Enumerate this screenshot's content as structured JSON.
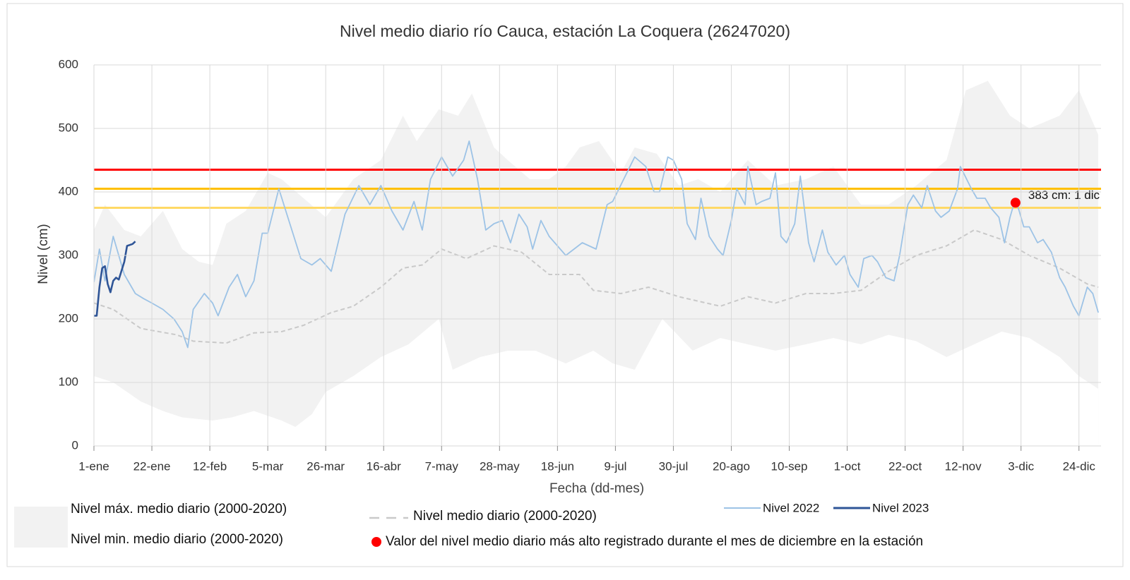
{
  "chart_data": {
    "type": "line",
    "title": "Nivel medio diario río Cauca, estación La Coquera (26247020)",
    "xlabel": "Fecha (dd-mes)",
    "ylabel": "Nivel (cm)",
    "xlim": [
      0,
      365
    ],
    "ylim": [
      0,
      600
    ],
    "xticks": [
      {
        "value": 0,
        "label": "1-ene"
      },
      {
        "value": 21,
        "label": "22-ene"
      },
      {
        "value": 42,
        "label": "12-feb"
      },
      {
        "value": 63,
        "label": "5-mar"
      },
      {
        "value": 84,
        "label": "26-mar"
      },
      {
        "value": 105,
        "label": "16-abr"
      },
      {
        "value": 126,
        "label": "7-may"
      },
      {
        "value": 147,
        "label": "28-may"
      },
      {
        "value": 168,
        "label": "18-jun"
      },
      {
        "value": 189,
        "label": "9-jul"
      },
      {
        "value": 210,
        "label": "30-jul"
      },
      {
        "value": 231,
        "label": "20-ago"
      },
      {
        "value": 252,
        "label": "10-sep"
      },
      {
        "value": 273,
        "label": "1-oct"
      },
      {
        "value": 294,
        "label": "22-oct"
      },
      {
        "value": 315,
        "label": "12-nov"
      },
      {
        "value": 336,
        "label": "3-dic"
      },
      {
        "value": 357,
        "label": "24-dic"
      }
    ],
    "yticks": [
      0,
      100,
      200,
      300,
      400,
      500,
      600
    ],
    "grid": true,
    "series": [
      {
        "name": "Nivel máx. medio diario (2000-2020)",
        "style": "area",
        "color": "#f2f2f2",
        "x": [
          0,
          4,
          11,
          17,
          25,
          32,
          38,
          43,
          48,
          55,
          63,
          68,
          76,
          84,
          94,
          104,
          112,
          117,
          125,
          132,
          137,
          145,
          150,
          158,
          165,
          171,
          176,
          183,
          191,
          196,
          204,
          212,
          219,
          227,
          237,
          247,
          258,
          268,
          278,
          288,
          298,
          309,
          316,
          324,
          332,
          339,
          350,
          357,
          364
        ],
        "values": [
          340,
          380,
          340,
          330,
          370,
          310,
          290,
          285,
          350,
          370,
          430,
          420,
          390,
          360,
          420,
          450,
          520,
          480,
          530,
          520,
          555,
          470,
          450,
          420,
          420,
          440,
          470,
          480,
          430,
          470,
          460,
          410,
          420,
          400,
          450,
          410,
          420,
          440,
          380,
          380,
          410,
          450,
          560,
          575,
          520,
          500,
          520,
          560,
          490
        ]
      },
      {
        "name": "Nivel min. medio diario (2000-2020)",
        "style": "area",
        "color": "#ffffff",
        "x": [
          0,
          7,
          17,
          25,
          32,
          43,
          50,
          58,
          68,
          73,
          79,
          84,
          94,
          104,
          114,
          125,
          130,
          140,
          150,
          160,
          171,
          181,
          188,
          196,
          206,
          217,
          227,
          237,
          247,
          258,
          268,
          278,
          288,
          298,
          309,
          319,
          329,
          339,
          350,
          357,
          364
        ],
        "values": [
          110,
          100,
          70,
          55,
          45,
          40,
          45,
          55,
          40,
          30,
          50,
          85,
          110,
          140,
          160,
          200,
          120,
          140,
          150,
          150,
          130,
          150,
          130,
          120,
          200,
          150,
          170,
          160,
          150,
          160,
          170,
          160,
          175,
          165,
          140,
          160,
          180,
          170,
          140,
          110,
          90
        ]
      },
      {
        "name": "Nivel medio diario (2000-2020)",
        "style": "dashed",
        "color": "#c9c9c9",
        "x": [
          0,
          7,
          17,
          30,
          36,
          48,
          58,
          68,
          76,
          86,
          94,
          104,
          112,
          119,
          126,
          135,
          145,
          155,
          165,
          176,
          181,
          191,
          201,
          212,
          222,
          227,
          237,
          247,
          258,
          268,
          278,
          288,
          298,
          309,
          319,
          329,
          339,
          350,
          360,
          364
        ],
        "values": [
          225,
          215,
          185,
          175,
          165,
          162,
          178,
          180,
          190,
          210,
          220,
          250,
          280,
          285,
          310,
          295,
          315,
          305,
          270,
          270,
          245,
          240,
          250,
          235,
          225,
          220,
          235,
          225,
          240,
          240,
          245,
          275,
          300,
          315,
          340,
          325,
          300,
          280,
          255,
          250
        ]
      },
      {
        "name": "Nivel 2022",
        "style": "solid",
        "color": "#9dc3e6",
        "x": [
          0,
          2,
          4,
          7,
          11,
          15,
          18,
          21,
          25,
          29,
          32,
          34,
          36,
          40,
          43,
          45,
          49,
          52,
          55,
          58,
          61,
          63,
          67,
          71,
          75,
          79,
          82,
          86,
          91,
          96,
          100,
          104,
          108,
          112,
          116,
          119,
          122,
          126,
          130,
          134,
          136,
          139,
          142,
          145,
          148,
          151,
          154,
          157,
          159,
          162,
          165,
          171,
          174,
          177,
          182,
          186,
          188,
          192,
          196,
          200,
          203,
          205,
          208,
          210,
          213,
          215,
          218,
          220,
          223,
          226,
          228,
          231,
          233,
          236,
          237,
          240,
          242,
          245,
          247,
          249,
          251,
          254,
          256,
          259,
          261,
          264,
          266,
          269,
          272,
          274,
          277,
          279,
          282,
          284,
          287,
          290,
          292,
          295,
          297,
          300,
          302,
          305,
          307,
          310,
          313,
          314,
          318,
          320,
          323,
          325,
          328,
          330,
          332,
          334,
          337,
          339,
          342,
          344,
          347,
          350,
          352,
          355,
          357,
          360,
          362,
          364
        ],
        "values": [
          258,
          310,
          260,
          330,
          270,
          240,
          232,
          225,
          215,
          200,
          180,
          155,
          215,
          240,
          225,
          205,
          250,
          270,
          235,
          260,
          335,
          335,
          405,
          350,
          295,
          285,
          295,
          275,
          365,
          410,
          380,
          410,
          370,
          340,
          385,
          340,
          420,
          455,
          425,
          450,
          480,
          420,
          340,
          350,
          355,
          320,
          365,
          345,
          310,
          355,
          330,
          300,
          310,
          320,
          310,
          380,
          385,
          420,
          455,
          440,
          400,
          400,
          455,
          450,
          420,
          350,
          325,
          390,
          330,
          310,
          300,
          355,
          405,
          380,
          440,
          380,
          385,
          390,
          430,
          330,
          320,
          350,
          425,
          320,
          290,
          340,
          305,
          285,
          300,
          270,
          250,
          295,
          300,
          290,
          265,
          260,
          300,
          380,
          395,
          375,
          410,
          370,
          360,
          370,
          405,
          440,
          405,
          390,
          390,
          375,
          360,
          320,
          360,
          390,
          345,
          345,
          320,
          325,
          305,
          265,
          250,
          220,
          205,
          250,
          240,
          210
        ]
      },
      {
        "name": "Nivel 2023",
        "style": "solid",
        "color": "#2f5597",
        "x": [
          0,
          1,
          2,
          3,
          4,
          5,
          6,
          7,
          8,
          9,
          11,
          12,
          14,
          15
        ],
        "values": [
          205,
          205,
          250,
          280,
          283,
          255,
          242,
          260,
          265,
          262,
          290,
          315,
          318,
          322
        ]
      }
    ],
    "reference_lines": [
      {
        "value": 435,
        "color": "#ff0000"
      },
      {
        "value": 405,
        "color": "#ffc000"
      },
      {
        "value": 375,
        "color": "#ffd966"
      }
    ],
    "highlight": {
      "name": "Valor del nivel medio diario más alto registrado durante el mes de diciembre en la estación",
      "x": 334,
      "value": 383,
      "label": "383 cm: 1 dic",
      "color": "#ff0000"
    }
  }
}
